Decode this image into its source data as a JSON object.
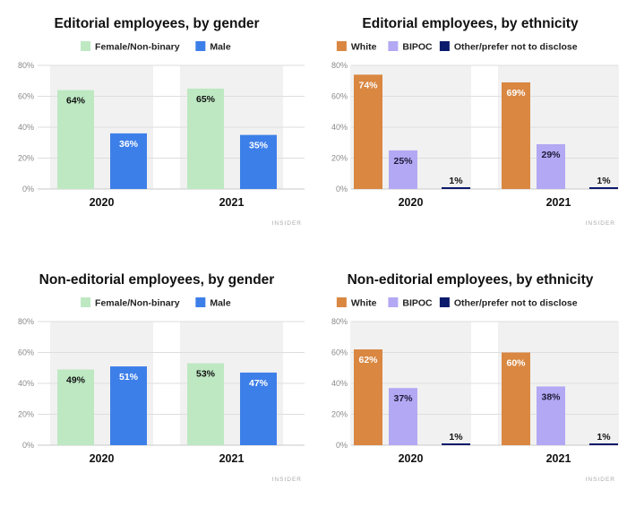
{
  "page": {
    "credit": "INSIDER"
  },
  "chart_data": [
    {
      "type": "bar",
      "title": "Editorial employees, by gender",
      "categories": [
        "2020",
        "2021"
      ],
      "series": [
        {
          "name": "Female/Non-binary",
          "color": "#bde8c2",
          "label_color": "#111111",
          "values": [
            64,
            65
          ],
          "labels": [
            "64%",
            "65%"
          ]
        },
        {
          "name": "Male",
          "color": "#3d7fe9",
          "label_color": "#ffffff",
          "values": [
            36,
            35
          ],
          "labels": [
            "36%",
            "35%"
          ]
        }
      ],
      "yticks": [
        "0%",
        "20%",
        "40%",
        "60%",
        "80%"
      ],
      "ylim": [
        0,
        80
      ],
      "xlabel": "",
      "ylabel": "",
      "grid": true,
      "legend": "top-center",
      "credit": "INSIDER"
    },
    {
      "type": "bar",
      "title": "Editorial employees, by ethnicity",
      "categories": [
        "2020",
        "2021"
      ],
      "series": [
        {
          "name": "White",
          "color": "#d98741",
          "label_color": "#ffffff",
          "values": [
            74,
            69
          ],
          "labels": [
            "74%",
            "69%"
          ]
        },
        {
          "name": "BIPOC",
          "color": "#b3a8f3",
          "label_color": "#1c1c3a",
          "values": [
            25,
            29
          ],
          "labels": [
            "25%",
            "29%"
          ]
        },
        {
          "name": "Other/prefer not to disclose",
          "color": "#0b1a6b",
          "label_color": "#111111",
          "values": [
            1,
            1
          ],
          "labels": [
            "1%",
            "1%"
          ]
        }
      ],
      "yticks": [
        "0%",
        "20%",
        "40%",
        "60%",
        "80%"
      ],
      "ylim": [
        0,
        80
      ],
      "xlabel": "",
      "ylabel": "",
      "grid": true,
      "legend": "top-center",
      "credit": "INSIDER"
    },
    {
      "type": "bar",
      "title": "Non-editorial employees, by gender",
      "categories": [
        "2020",
        "2021"
      ],
      "series": [
        {
          "name": "Female/Non-binary",
          "color": "#bde8c2",
          "label_color": "#111111",
          "values": [
            49,
            53
          ],
          "labels": [
            "49%",
            "53%"
          ]
        },
        {
          "name": "Male",
          "color": "#3d7fe9",
          "label_color": "#ffffff",
          "values": [
            51,
            47
          ],
          "labels": [
            "51%",
            "47%"
          ]
        }
      ],
      "yticks": [
        "0%",
        "20%",
        "40%",
        "60%",
        "80%"
      ],
      "ylim": [
        0,
        80
      ],
      "xlabel": "",
      "ylabel": "",
      "grid": true,
      "legend": "top-center",
      "credit": "INSIDER"
    },
    {
      "type": "bar",
      "title": "Non-editorial employees, by ethnicity",
      "categories": [
        "2020",
        "2021"
      ],
      "series": [
        {
          "name": "White",
          "color": "#d98741",
          "label_color": "#ffffff",
          "values": [
            62,
            60
          ],
          "labels": [
            "62%",
            "60%"
          ]
        },
        {
          "name": "BIPOC",
          "color": "#b3a8f3",
          "label_color": "#1c1c3a",
          "values": [
            37,
            38
          ],
          "labels": [
            "37%",
            "38%"
          ]
        },
        {
          "name": "Other/prefer not to disclose",
          "color": "#0b1a6b",
          "label_color": "#111111",
          "values": [
            1,
            1
          ],
          "labels": [
            "1%",
            "1%"
          ]
        }
      ],
      "yticks": [
        "0%",
        "20%",
        "40%",
        "60%",
        "80%"
      ],
      "ylim": [
        0,
        80
      ],
      "xlabel": "",
      "ylabel": "",
      "grid": true,
      "legend": "top-center",
      "credit": "INSIDER"
    }
  ]
}
